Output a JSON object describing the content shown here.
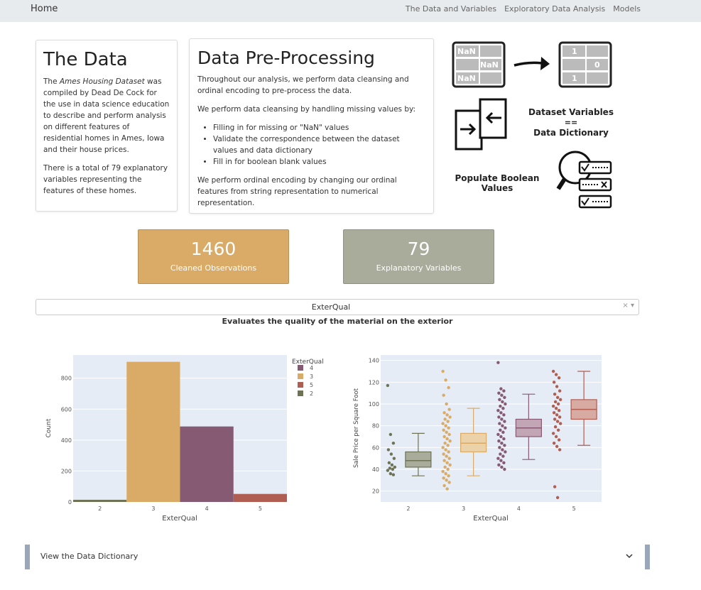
{
  "nav": {
    "brand": "Home",
    "links": [
      "The Data and Variables",
      "Exploratory Data Analysis",
      "Models"
    ]
  },
  "card_data": {
    "title": "The Data",
    "p1_pre": "The ",
    "p1_em": "Ames Housing Dataset",
    "p1_post": " was compiled by Dead De Cock for the use in data science education to describe and perform analysis on different features of residential homes in Ames, Iowa and their house prices.",
    "p2": "There is a total of 79 explanatory variables representing the features of these homes."
  },
  "card_prep": {
    "title": "Data Pre-Processing",
    "p1": "Throughout our analysis, we perform data cleansing and ordinal encoding to pre-process the data.",
    "p2": "We perform data cleansing by handling missing values by:",
    "bullets": [
      "Filling in for missing or \"NaN\" values",
      "Validate the correspondence between the dataset values and data dictionary",
      "Fill in for boolean blank values"
    ],
    "p3": "We perform ordinal encoding by changing our ordinal features from string representation to numerical representation."
  },
  "illustration": {
    "nan_label": "NaN",
    "one_label": "1",
    "zero_label": "0",
    "compare_text_1": "Dataset Variables",
    "compare_text_2": "==",
    "compare_text_3": "Data Dictionary",
    "bool_text_1": "Populate Boolean",
    "bool_text_2": "Values"
  },
  "stats": [
    {
      "value": "1460",
      "label": "Cleaned Observations",
      "color": "#d9ab66"
    },
    {
      "value": "79",
      "label": "Explanatory Variables",
      "color": "#a9ab9b"
    }
  ],
  "dropdown": {
    "selected": "ExterQual",
    "clear_icon": "×",
    "caret_icon": "▾"
  },
  "subtitle": "Evaluates the quality of the material on the exterior",
  "chart_data": [
    {
      "type": "bar",
      "xlabel": "ExterQual",
      "ylabel": "Count",
      "categories": [
        "2",
        "3",
        "4",
        "5"
      ],
      "values": [
        14,
        906,
        488,
        52
      ],
      "colors": [
        "#6e7356",
        "#d9ab66",
        "#855a72",
        "#b05e52"
      ],
      "yticks": [
        "0",
        "200",
        "400",
        "600",
        "800"
      ],
      "ylim": [
        0,
        950
      ],
      "legend": {
        "title": "ExterQual",
        "items": [
          "4",
          "3",
          "5",
          "2"
        ],
        "colors": [
          "#855a72",
          "#d9ab66",
          "#b05e52",
          "#6e7356"
        ],
        "placement": "top-right"
      }
    },
    {
      "type": "box",
      "xlabel": "ExterQual",
      "ylabel": "Sale Price per Square Foot",
      "categories": [
        "2",
        "3",
        "4",
        "5"
      ],
      "yticks": [
        "20",
        "40",
        "60",
        "80",
        "100",
        "120",
        "140"
      ],
      "ylim": [
        10,
        145
      ],
      "boxes": [
        {
          "q1": 42,
          "median": 48,
          "q3": 56,
          "whisker_low": 34,
          "whisker_high": 73,
          "points": [
            117,
            72,
            64,
            58,
            54,
            50,
            46,
            44,
            42,
            41,
            40,
            39,
            36,
            35
          ],
          "color": "#6e7356",
          "fill": "#a9ab9b"
        },
        {
          "q1": 56,
          "median": 64,
          "q3": 73,
          "whisker_low": 34,
          "whisker_high": 96,
          "points": [
            130,
            122,
            115,
            108,
            100,
            95,
            92,
            90,
            88,
            86,
            84,
            82,
            80,
            78,
            76,
            74,
            72,
            70,
            68,
            66,
            64,
            62,
            60,
            58,
            56,
            54,
            52,
            50,
            48,
            46,
            44,
            42,
            40,
            38,
            36,
            34,
            32,
            30,
            28,
            25,
            22
          ],
          "color": "#d9ab66",
          "fill": "#ecd2a8"
        },
        {
          "q1": 70,
          "median": 78,
          "q3": 86,
          "whisker_low": 49,
          "whisker_high": 109,
          "points": [
            138,
            114,
            112,
            110,
            108,
            106,
            104,
            102,
            100,
            98,
            96,
            94,
            92,
            90,
            88,
            86,
            84,
            82,
            80,
            78,
            76,
            74,
            72,
            70,
            68,
            66,
            64,
            62,
            60,
            58,
            56,
            54,
            52,
            50,
            48,
            46,
            44,
            42,
            40
          ],
          "color": "#855a72",
          "fill": "#c2a6b5"
        },
        {
          "q1": 86,
          "median": 95,
          "q3": 104,
          "whisker_low": 62,
          "whisker_high": 130,
          "points": [
            130,
            127,
            124,
            120,
            116,
            112,
            109,
            106,
            104,
            102,
            100,
            98,
            96,
            94,
            92,
            90,
            88,
            86,
            84,
            82,
            79,
            76,
            73,
            70,
            67,
            64,
            61,
            58,
            24,
            14
          ],
          "color": "#b05e52",
          "fill": "#d8aba2"
        }
      ]
    }
  ],
  "accordion": {
    "label": "View the Data Dictionary"
  }
}
